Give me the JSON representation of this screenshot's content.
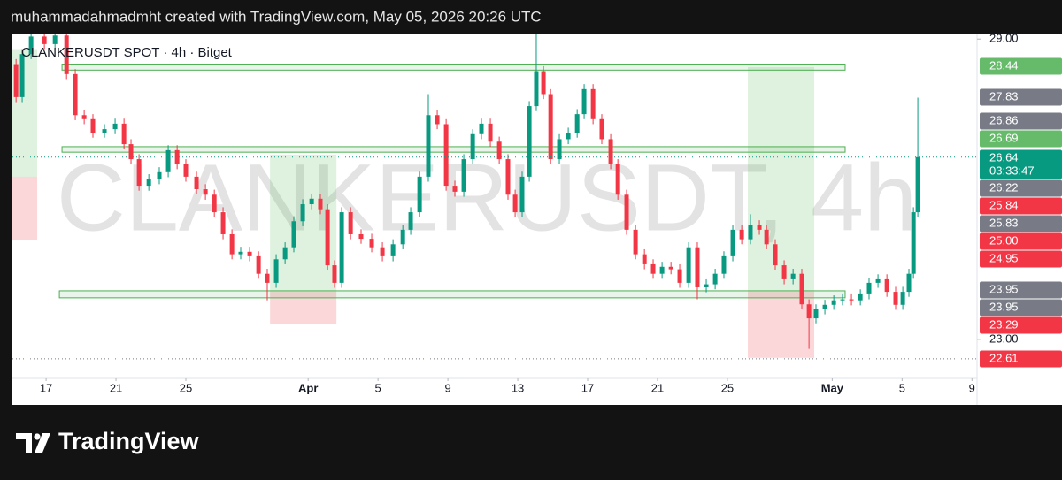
{
  "header": "muhammadahmadmht created with TradingView.com, May 05, 2026 20:26 UTC",
  "footer": "TradingView",
  "chart_data": {
    "type": "candlestick",
    "title": "CLANKERUSDT SPOT · 4h · Bitget",
    "watermark": "CLANKERUSDT, 4h",
    "up_color": "#089981",
    "down_color": "#f23645",
    "x": [
      -1.72,
      -1.37,
      -0.86,
      -0.1,
      0.51,
      1.17,
      1.67,
      2.18,
      2.68,
      3.34,
      3.95,
      4.46,
      4.86,
      5.32,
      5.88,
      6.48,
      6.99,
      7.5,
      8.0,
      8.61,
      9.12,
      9.63,
      10.13,
      10.64,
      11.14,
      11.65,
      12.16,
      12.66,
      13.17,
      13.68,
      14.18,
      14.69,
      15.2,
      15.7,
      16.11,
      16.51,
      16.92,
      17.43,
      18.03,
      18.64,
      19.25,
      19.86,
      20.42,
      20.87,
      21.38,
      21.88,
      22.39,
      22.9,
      23.4,
      23.91,
      24.42,
      24.92,
      25.43,
      25.94,
      26.44,
      26.85,
      27.25,
      27.66,
      28.06,
      28.47,
      28.88,
      29.38,
      29.89,
      30.4,
      30.8,
      31.31,
      31.81,
      32.32,
      32.73,
      33.23,
      33.74,
      34.25,
      34.75,
      35.26,
      35.77,
      36.27,
      36.78,
      37.28,
      37.79,
      38.3,
      38.8,
      39.31,
      39.82,
      40.32,
      40.83,
      41.24,
      41.74,
      42.25,
      42.76,
      43.26,
      43.67,
      44.07,
      44.58,
      45.09,
      45.59,
      46.1,
      46.61,
      47.11,
      47.62,
      48.13,
      48.63,
      49.04,
      49.39,
      49.65,
      49.9
    ],
    "open": [
      28.5,
      27.84,
      28.7,
      29.05,
      28.9,
      29.07,
      28.3,
      27.48,
      27.4,
      27.13,
      27.2,
      27.31,
      26.9,
      26.6,
      26.07,
      26.2,
      26.34,
      26.78,
      26.5,
      26.25,
      26.0,
      25.89,
      25.54,
      25.1,
      24.7,
      24.75,
      24.66,
      24.31,
      24.13,
      24.6,
      24.84,
      25.36,
      25.7,
      25.81,
      25.6,
      24.48,
      24.13,
      25.54,
      25.1,
      25.01,
      24.84,
      24.66,
      24.9,
      25.19,
      25.54,
      26.25,
      27.48,
      27.3,
      26.07,
      25.95,
      26.6,
      27.1,
      27.31,
      26.95,
      26.6,
      25.89,
      25.54,
      26.25,
      27.66,
      28.36,
      27.9,
      26.6,
      27.0,
      27.13,
      27.5,
      28.0,
      27.4,
      27.0,
      26.5,
      25.89,
      25.19,
      24.7,
      24.5,
      24.31,
      24.45,
      24.4,
      24.13,
      24.84,
      24.04,
      24.1,
      24.31,
      24.66,
      25.19,
      25.0,
      25.28,
      25.19,
      24.9,
      24.48,
      24.2,
      24.31,
      23.7,
      23.42,
      23.6,
      23.69,
      23.78,
      23.8,
      23.78,
      23.9,
      24.13,
      24.2,
      23.95,
      23.69,
      23.95,
      24.31,
      25.54
    ],
    "high": [
      28.6,
      28.8,
      29.15,
      29.15,
      29.17,
      29.17,
      28.4,
      27.58,
      27.5,
      27.3,
      27.41,
      27.41,
      27.0,
      26.7,
      26.3,
      26.44,
      26.88,
      26.88,
      26.6,
      26.35,
      26.1,
      25.99,
      25.64,
      25.2,
      24.85,
      24.85,
      24.76,
      24.41,
      24.7,
      24.94,
      25.46,
      25.8,
      25.91,
      25.91,
      25.7,
      24.58,
      25.64,
      25.64,
      25.2,
      25.11,
      24.94,
      25.0,
      25.29,
      25.64,
      26.35,
      27.9,
      27.58,
      27.4,
      26.17,
      26.7,
      27.2,
      27.41,
      27.41,
      27.05,
      26.7,
      25.99,
      26.35,
      27.76,
      29.1,
      28.46,
      28.0,
      27.1,
      27.23,
      27.6,
      28.1,
      28.1,
      27.5,
      27.1,
      26.6,
      25.99,
      25.29,
      24.8,
      24.6,
      24.55,
      24.55,
      24.5,
      24.94,
      24.94,
      24.2,
      24.41,
      24.76,
      25.29,
      25.29,
      25.5,
      25.38,
      25.29,
      25.0,
      24.58,
      24.41,
      24.41,
      23.8,
      23.7,
      23.79,
      23.88,
      23.9,
      23.9,
      24.0,
      24.23,
      24.3,
      24.3,
      24.05,
      24.05,
      24.41,
      25.64,
      27.83
    ],
    "low": [
      27.74,
      27.74,
      28.6,
      28.8,
      28.8,
      28.2,
      27.38,
      27.3,
      27.03,
      27.03,
      27.1,
      26.8,
      26.5,
      25.97,
      25.97,
      26.1,
      26.24,
      26.4,
      26.15,
      25.9,
      25.79,
      25.44,
      25.0,
      24.6,
      24.6,
      24.56,
      24.21,
      23.78,
      24.03,
      24.5,
      24.74,
      25.26,
      25.6,
      25.5,
      24.38,
      24.03,
      24.03,
      25.0,
      24.91,
      24.74,
      24.56,
      24.56,
      24.8,
      25.09,
      25.44,
      26.15,
      27.2,
      25.97,
      25.85,
      25.85,
      26.5,
      27.0,
      26.85,
      26.5,
      25.79,
      25.44,
      25.44,
      26.15,
      27.56,
      27.8,
      26.5,
      26.5,
      26.9,
      27.03,
      27.4,
      27.3,
      26.9,
      26.4,
      25.79,
      25.09,
      24.6,
      24.4,
      24.21,
      24.21,
      24.3,
      24.03,
      24.03,
      23.8,
      23.94,
      24.0,
      24.21,
      24.56,
      24.9,
      24.9,
      25.09,
      24.8,
      24.38,
      24.1,
      24.1,
      23.6,
      22.81,
      23.32,
      23.5,
      23.59,
      23.68,
      23.68,
      23.68,
      23.8,
      24.03,
      23.85,
      23.59,
      23.59,
      23.85,
      24.21,
      25.44
    ],
    "close": [
      27.84,
      28.7,
      29.05,
      28.9,
      29.07,
      28.3,
      27.48,
      27.4,
      27.13,
      27.2,
      27.31,
      26.9,
      26.6,
      26.07,
      26.2,
      26.34,
      26.78,
      26.5,
      26.25,
      26.0,
      25.89,
      25.54,
      25.1,
      24.7,
      24.75,
      24.66,
      24.31,
      24.13,
      24.6,
      24.84,
      25.36,
      25.7,
      25.81,
      25.6,
      24.48,
      24.13,
      25.54,
      25.1,
      25.01,
      24.84,
      24.66,
      24.9,
      25.19,
      25.54,
      26.25,
      27.48,
      27.3,
      26.07,
      25.95,
      26.6,
      27.1,
      27.31,
      26.95,
      26.6,
      25.89,
      25.54,
      26.25,
      27.66,
      28.36,
      27.9,
      26.6,
      27.0,
      27.13,
      27.5,
      28.0,
      27.4,
      27.0,
      26.5,
      25.89,
      25.19,
      24.7,
      24.5,
      24.31,
      24.45,
      24.4,
      24.13,
      24.84,
      24.04,
      24.1,
      24.31,
      24.66,
      25.19,
      25.0,
      25.28,
      25.19,
      24.9,
      24.48,
      24.2,
      24.31,
      23.7,
      23.42,
      23.6,
      23.69,
      23.78,
      23.8,
      23.78,
      23.9,
      24.13,
      24.2,
      23.95,
      23.69,
      23.95,
      24.31,
      25.54,
      26.64
    ],
    "xlim": [
      -1.93,
      53.29
    ],
    "xticks": [
      {
        "value": 0,
        "label": "17"
      },
      {
        "value": 4,
        "label": "21"
      },
      {
        "value": 8,
        "label": "25"
      },
      {
        "value": 15,
        "label": "Apr"
      },
      {
        "value": 19,
        "label": "5"
      },
      {
        "value": 23,
        "label": "9"
      },
      {
        "value": 27,
        "label": "13"
      },
      {
        "value": 31,
        "label": "17"
      },
      {
        "value": 35,
        "label": "21"
      },
      {
        "value": 39,
        "label": "25"
      },
      {
        "value": 45,
        "label": "May"
      },
      {
        "value": 49,
        "label": "5"
      },
      {
        "value": 53,
        "label": "9"
      }
    ],
    "ylim": [
      22.22,
      29.11
    ],
    "yticks": [
      {
        "value": 29,
        "label": "29.00"
      },
      {
        "value": 23,
        "label": "23.00"
      }
    ],
    "zones": [
      {
        "x": [
          0.91,
          45.74
        ],
        "y": [
          28.38,
          28.5
        ]
      },
      {
        "x": [
          0.91,
          45.74
        ],
        "y": [
          26.74,
          26.85
        ]
      },
      {
        "x": [
          0.76,
          45.74
        ],
        "y": [
          23.83,
          23.97
        ]
      }
    ],
    "positions": [
      {
        "x": [
          -1.93,
          -0.51
        ],
        "target": 28.8,
        "entry": 26.25,
        "stop": 24.98
      },
      {
        "x": [
          12.82,
          16.62
        ],
        "target": 26.69,
        "entry": 23.95,
        "stop": 23.3
      },
      {
        "x": [
          40.17,
          43.97
        ],
        "target": 28.44,
        "entry": 23.95,
        "stop": 22.63
      }
    ],
    "countdown": "03:33:47",
    "price_labels": [
      {
        "value": 28.44,
        "label": "28.44",
        "color": "#66bb6a"
      },
      {
        "value": 27.83,
        "label": "27.83",
        "color": "#787b86"
      },
      {
        "value": 26.86,
        "label": "26.86",
        "color": "#787b86"
      },
      {
        "value": 26.69,
        "label": "26.69",
        "color": "#66bb6a"
      },
      {
        "value": 26.64,
        "label": "26.64",
        "color": "#089981"
      },
      {
        "value": 26.22,
        "label": "26.22",
        "color": "#787b86"
      },
      {
        "value": 25.84,
        "label": "25.84",
        "color": "#f23645"
      },
      {
        "value": 25.83,
        "label": "25.83",
        "color": "#787b86"
      },
      {
        "value": 25,
        "label": "25.00",
        "color": "#f23645"
      },
      {
        "value": 24.95,
        "label": "24.95",
        "color": "#f23645"
      },
      {
        "value": 23.95,
        "label": "23.95",
        "color": "#787b86"
      },
      {
        "value": 23.95,
        "label": "23.95",
        "color": "#787b86"
      },
      {
        "value": 23.29,
        "label": "23.29",
        "color": "#f23645"
      },
      {
        "value": 22.61,
        "label": "22.61",
        "color": "#f23645"
      }
    ]
  }
}
